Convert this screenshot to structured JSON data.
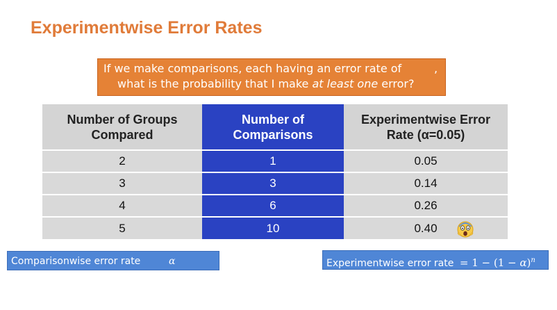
{
  "title": "Experimentwise Error Rates",
  "question": {
    "line1": "If we make comparisons, each having an error rate of",
    "line1_suffix": ",",
    "line2_prefix": "what is the probability that I make ",
    "line2_emph": "at least one",
    "line2_suffix": " error?"
  },
  "table": {
    "headers": [
      "Number of Groups\nCompared",
      "Number of\nComparisons",
      "Experimentwise Error\nRate (α=0.05)"
    ],
    "rows": [
      [
        "2",
        "1",
        "0.05"
      ],
      [
        "3",
        "3",
        "0.14"
      ],
      [
        "4",
        "6",
        "0.26"
      ],
      [
        "5",
        "10",
        "0.40"
      ]
    ],
    "last_row_icon": "screaming-face-icon"
  },
  "boxes": {
    "comparisonwise_label": "Comparisonwise error rate",
    "comparisonwise_symbol": "α",
    "experimentwise_label": "Experimentwise error rate",
    "experimentwise_eq": "=",
    "experimentwise_formula_a": "1 − (1 − ",
    "experimentwise_formula_alpha": "α",
    "experimentwise_formula_b": ")",
    "experimentwise_exponent": "n"
  },
  "colors": {
    "title": "#e07b39",
    "question_bg": "#e58236",
    "table_highlight": "#2a42c2",
    "table_cell": "#d9d9d9",
    "info_box": "#4f86d6"
  }
}
